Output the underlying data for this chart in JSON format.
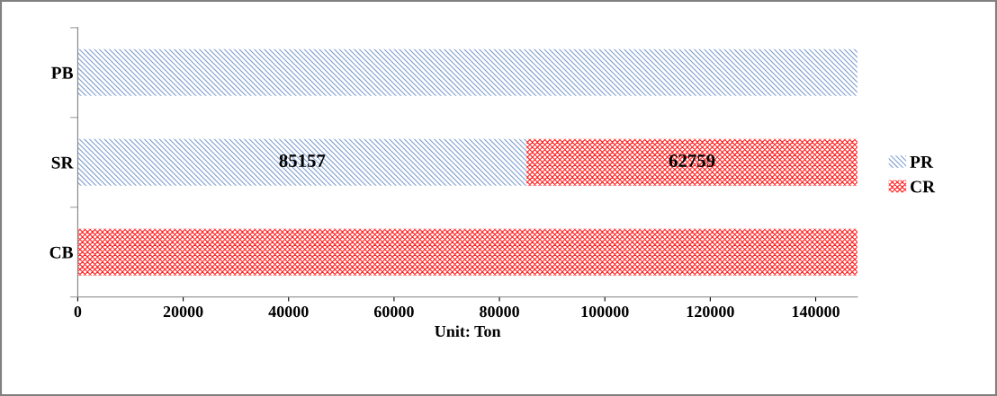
{
  "chart_data": {
    "type": "bar",
    "orientation": "horizontal",
    "stacked": true,
    "xlabel": "Unit: Ton",
    "categories": [
      "PB",
      "SR",
      "CB"
    ],
    "series": [
      {
        "name": "PR",
        "color": "#7f9fd0",
        "values": [
          147916,
          85157,
          null
        ],
        "value_labels": [
          null,
          "85157",
          null
        ]
      },
      {
        "name": "CR",
        "color": "#ff2020",
        "values": [
          null,
          62759,
          147916
        ],
        "value_labels": [
          null,
          "62759",
          null
        ]
      }
    ],
    "xlim": [
      0,
      147916
    ],
    "xticks": [
      0,
      20000,
      40000,
      60000,
      80000,
      100000,
      120000,
      140000
    ],
    "grid": false,
    "legend": "right"
  }
}
